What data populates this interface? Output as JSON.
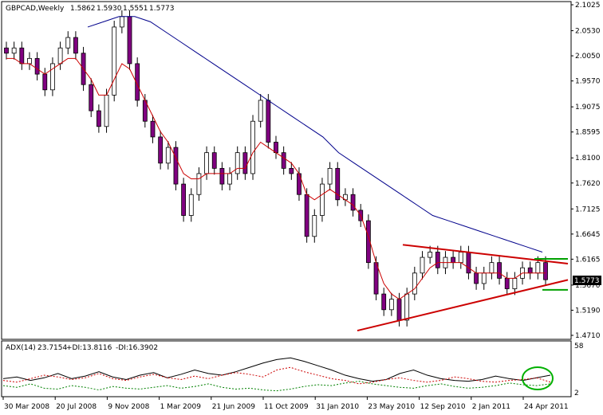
{
  "header": {
    "symbol": "GBPCAD,Weekly",
    "open": "1.5862",
    "high": "1.5930",
    "low": "1.5551",
    "close": "1.5773"
  },
  "price_badge": "1.5773",
  "indicator_header": {
    "name": "ADX(14)",
    "adx": "23.7154",
    "plus_di": "+DI:13.8116",
    "minus_di": "-DI:16.3902"
  },
  "indicator_scale": [
    "58",
    "2"
  ],
  "colors": {
    "background": "#ffffff",
    "bull_candle": "#ffffff",
    "bear_candle": "#800080",
    "ma_fast": "#cc0000",
    "ma_slow": "#00008b",
    "trendline": "#cc0000",
    "support_resistance": "#00a000",
    "adx_line": "#000000",
    "plus_di_line": "#008000",
    "minus_di_line": "#cc0000",
    "highlight_circle": "#00b000"
  },
  "chart_data": [
    {
      "type": "candlestick",
      "title": "GBPCAD,Weekly",
      "x_tick_labels": [
        "30 Mar 2008",
        "20 Jul 2008",
        "9 Nov 2008",
        "1 Mar 2009",
        "21 Jun 2009",
        "11 Oct 2009",
        "31 Jan 2010",
        "23 May 2010",
        "12 Sep 2010",
        "2 Jan 2011",
        "24 Apr 2011"
      ],
      "y_tick_labels": [
        "2.1025",
        "2.0530",
        "2.0050",
        "1.9570",
        "1.9075",
        "1.8595",
        "1.8100",
        "1.7620",
        "1.7125",
        "1.6645",
        "1.6165",
        "1.5670",
        "1.5190",
        "1.4710"
      ],
      "ylim": [
        1.471,
        2.1025
      ],
      "series": [
        {
          "name": "price",
          "values_approx": [
            2.01,
            2.02,
            1.99,
            2.0,
            1.97,
            1.94,
            1.99,
            2.02,
            2.04,
            2.01,
            1.95,
            1.9,
            1.87,
            1.93,
            2.06,
            2.08,
            1.99,
            1.92,
            1.88,
            1.85,
            1.8,
            1.83,
            1.76,
            1.7,
            1.74,
            1.78,
            1.82,
            1.79,
            1.76,
            1.78,
            1.82,
            1.78,
            1.88,
            1.92,
            1.84,
            1.82,
            1.79,
            1.78,
            1.74,
            1.66,
            1.7,
            1.76,
            1.79,
            1.73,
            1.74,
            1.71,
            1.69,
            1.61,
            1.55,
            1.52,
            1.54,
            1.5,
            1.55,
            1.59,
            1.62,
            1.63,
            1.6,
            1.62,
            1.61,
            1.63,
            1.59,
            1.57,
            1.59,
            1.61,
            1.58,
            1.56,
            1.58,
            1.6,
            1.59,
            1.61,
            1.5773
          ]
        },
        {
          "name": "ma_fast",
          "values_approx": [
            2.0,
            2.0,
            1.99,
            1.99,
            1.98,
            1.97,
            1.98,
            1.99,
            2.0,
            2.0,
            1.98,
            1.96,
            1.93,
            1.93,
            1.96,
            1.99,
            1.98,
            1.95,
            1.92,
            1.89,
            1.86,
            1.84,
            1.81,
            1.78,
            1.77,
            1.77,
            1.78,
            1.78,
            1.78,
            1.78,
            1.79,
            1.79,
            1.82,
            1.84,
            1.83,
            1.82,
            1.81,
            1.8,
            1.78,
            1.74,
            1.73,
            1.74,
            1.75,
            1.74,
            1.73,
            1.72,
            1.7,
            1.66,
            1.61,
            1.57,
            1.55,
            1.54,
            1.55,
            1.56,
            1.58,
            1.6,
            1.61,
            1.61,
            1.61,
            1.61,
            1.6,
            1.59,
            1.59,
            1.59,
            1.59,
            1.58,
            1.58,
            1.59,
            1.59,
            1.59,
            1.59
          ]
        },
        {
          "name": "ma_slow",
          "values_approx": [
            2.06,
            2.07,
            2.08,
            2.08,
            2.07,
            2.05,
            2.03,
            2.01,
            1.99,
            1.97,
            1.95,
            1.93,
            1.91,
            1.89,
            1.87,
            1.85,
            1.82,
            1.8,
            1.78,
            1.76,
            1.74,
            1.72,
            1.7,
            1.69,
            1.68,
            1.67,
            1.66,
            1.65,
            1.64,
            1.63
          ]
        }
      ],
      "annotations": {
        "triangle_upper": [
          1.644,
          1.608
        ],
        "triangle_lower": [
          1.48,
          1.577
        ],
        "resistance_level": 1.617,
        "support_level": 1.558
      }
    },
    {
      "type": "line",
      "title": "ADX(14) 23.7154 +DI:13.8116 -DI:16.3902",
      "ylim": [
        2,
        58
      ],
      "series": [
        {
          "name": "ADX",
          "values_approx": [
            20,
            22,
            18,
            21,
            26,
            20,
            23,
            28,
            22,
            19,
            24,
            27,
            21,
            25,
            30,
            26,
            24,
            28,
            33,
            38,
            42,
            44,
            40,
            35,
            30,
            24,
            20,
            17,
            19,
            26,
            30,
            24,
            20,
            18,
            17,
            19,
            23,
            20,
            18,
            21,
            24
          ]
        },
        {
          "name": "+DI",
          "values_approx": [
            12,
            10,
            14,
            9,
            8,
            12,
            10,
            7,
            11,
            9,
            8,
            10,
            12,
            9,
            11,
            14,
            10,
            8,
            9,
            7,
            6,
            8,
            11,
            13,
            12,
            15,
            17,
            14,
            12,
            10,
            9,
            12,
            14,
            11,
            9,
            10,
            12,
            15,
            13,
            12,
            14
          ]
        },
        {
          "name": "-DI",
          "values_approx": [
            18,
            16,
            20,
            24,
            22,
            19,
            21,
            26,
            20,
            18,
            22,
            25,
            21,
            19,
            23,
            20,
            24,
            27,
            25,
            22,
            30,
            33,
            28,
            24,
            20,
            18,
            14,
            16,
            19,
            21,
            18,
            16,
            18,
            22,
            20,
            17,
            16,
            18,
            19,
            21,
            16
          ]
        }
      ]
    }
  ]
}
